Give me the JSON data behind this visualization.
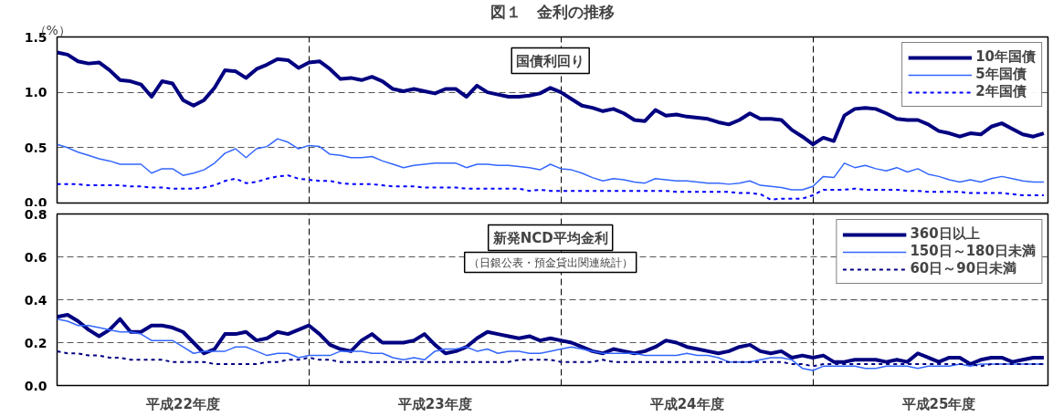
{
  "chart_data": [
    {
      "type": "line",
      "title": "図１　金利の推移",
      "subtitle": "国債利回り",
      "ylabel": "（%）",
      "categories": [
        null,
        null,
        null,
        null,
        null,
        null,
        null,
        null,
        null,
        null,
        null,
        null,
        null,
        null,
        null,
        null,
        null,
        null,
        null,
        null,
        null,
        null,
        null,
        null,
        null,
        null,
        null,
        null,
        null,
        null,
        null,
        null,
        null,
        null,
        null,
        null,
        null,
        null,
        null,
        null,
        null,
        null,
        null,
        null,
        null,
        null,
        null,
        null,
        null,
        null,
        null,
        null,
        null,
        null,
        null,
        null,
        null,
        null,
        null,
        null,
        null,
        null,
        null,
        null,
        null,
        null,
        null,
        null,
        null,
        null,
        null,
        null,
        null,
        null,
        null,
        null,
        null,
        null,
        null,
        null,
        null,
        null,
        null,
        null,
        null,
        null,
        null,
        null,
        null,
        null,
        null,
        null,
        null,
        null,
        null
      ],
      "ylim": [
        0,
        1.5
      ],
      "yticks": [
        {
          "value": 0,
          "label": "0.0"
        },
        {
          "value": 0.5,
          "label": "0.5"
        },
        {
          "value": 1,
          "label": "1.0"
        },
        {
          "value": 1.5,
          "label": "1.5"
        }
      ],
      "tick_labels": "y",
      "grid": true,
      "legend": "top right",
      "series": [
        {
          "name": "10年国債",
          "color": "#000080",
          "line_style": "solid",
          "values": [
            1.36,
            1.34,
            1.28,
            1.26,
            1.27,
            1.2,
            1.11,
            1.1,
            1.07,
            0.96,
            1.1,
            1.08,
            0.93,
            0.88,
            0.93,
            1.04,
            1.2,
            1.19,
            1.13,
            1.21,
            1.25,
            1.3,
            1.29,
            1.22,
            1.27,
            1.28,
            1.21,
            1.12,
            1.13,
            1.11,
            1.14,
            1.1,
            1.03,
            1.01,
            1.03,
            1.01,
            0.99,
            1.03,
            1.03,
            0.96,
            1.06,
            1.0,
            0.98,
            0.96,
            0.96,
            0.97,
            0.99,
            1.04,
            1.0,
            0.94,
            0.88,
            0.86,
            0.83,
            0.85,
            0.81,
            0.75,
            0.74,
            0.84,
            0.79,
            0.8,
            0.78,
            0.77,
            0.76,
            0.73,
            0.71,
            0.75,
            0.81,
            0.76,
            0.76,
            0.75,
            0.66,
            0.6,
            0.53,
            0.59,
            0.56,
            0.79,
            0.85,
            0.86,
            0.85,
            0.81,
            0.76,
            0.75,
            0.75,
            0.71,
            0.65,
            0.63,
            0.6,
            0.63,
            0.62,
            0.69,
            0.72,
            0.67,
            0.62,
            0.6,
            0.63
          ]
        },
        {
          "name": "5年国債",
          "color": "#3366ff",
          "line_style": "solid",
          "values": [
            0.53,
            0.5,
            0.46,
            0.43,
            0.4,
            0.38,
            0.35,
            0.35,
            0.35,
            0.27,
            0.31,
            0.31,
            0.25,
            0.27,
            0.3,
            0.36,
            0.45,
            0.49,
            0.41,
            0.49,
            0.51,
            0.58,
            0.55,
            0.49,
            0.52,
            0.51,
            0.44,
            0.43,
            0.41,
            0.41,
            0.42,
            0.38,
            0.35,
            0.32,
            0.34,
            0.35,
            0.36,
            0.36,
            0.36,
            0.32,
            0.35,
            0.35,
            0.34,
            0.34,
            0.33,
            0.32,
            0.3,
            0.35,
            0.31,
            0.3,
            0.27,
            0.23,
            0.2,
            0.22,
            0.21,
            0.19,
            0.18,
            0.22,
            0.21,
            0.2,
            0.2,
            0.19,
            0.18,
            0.18,
            0.17,
            0.18,
            0.2,
            0.16,
            0.15,
            0.14,
            0.12,
            0.12,
            0.15,
            0.24,
            0.23,
            0.36,
            0.32,
            0.34,
            0.31,
            0.29,
            0.32,
            0.28,
            0.31,
            0.26,
            0.24,
            0.21,
            0.19,
            0.21,
            0.19,
            0.22,
            0.24,
            0.22,
            0.2,
            0.19,
            0.19
          ]
        },
        {
          "name": "2年国債",
          "color": "#0000ff",
          "line_style": "dotted",
          "values": [
            0.17,
            0.17,
            0.17,
            0.16,
            0.16,
            0.16,
            0.16,
            0.15,
            0.15,
            0.14,
            0.14,
            0.13,
            0.13,
            0.13,
            0.14,
            0.16,
            0.2,
            0.22,
            0.18,
            0.19,
            0.22,
            0.24,
            0.25,
            0.22,
            0.21,
            0.2,
            0.2,
            0.18,
            0.17,
            0.17,
            0.17,
            0.16,
            0.15,
            0.15,
            0.15,
            0.14,
            0.14,
            0.14,
            0.14,
            0.13,
            0.13,
            0.13,
            0.13,
            0.13,
            0.13,
            0.11,
            0.12,
            0.11,
            0.11,
            0.11,
            0.11,
            0.11,
            0.11,
            0.11,
            0.11,
            0.11,
            0.11,
            0.11,
            0.11,
            0.1,
            0.1,
            0.1,
            0.1,
            0.1,
            0.1,
            0.09,
            0.09,
            0.08,
            0.03,
            0.04,
            0.04,
            0.04,
            0.07,
            0.12,
            0.12,
            0.12,
            0.13,
            0.12,
            0.12,
            0.12,
            0.12,
            0.11,
            0.11,
            0.1,
            0.1,
            0.1,
            0.1,
            0.09,
            0.09,
            0.09,
            0.09,
            0.08,
            0.07,
            0.07,
            0.07
          ]
        }
      ]
    },
    {
      "type": "line",
      "subtitle": "新発NCD平均金利",
      "annotations": [
        "（日銀公表・預金貸出関連統計）"
      ],
      "categories": [
        null,
        null,
        null,
        null,
        null,
        null,
        null,
        null,
        null,
        null,
        null,
        null,
        "平成22年度",
        null,
        null,
        null,
        null,
        null,
        null,
        null,
        null,
        null,
        null,
        null,
        null,
        null,
        null,
        null,
        null,
        null,
        null,
        null,
        null,
        null,
        null,
        null,
        "平成23年度",
        null,
        null,
        null,
        null,
        null,
        null,
        null,
        null,
        null,
        null,
        null,
        null,
        null,
        null,
        null,
        null,
        null,
        null,
        null,
        null,
        null,
        null,
        null,
        "平成24年度",
        null,
        null,
        null,
        null,
        null,
        null,
        null,
        null,
        null,
        null,
        null,
        null,
        null,
        null,
        null,
        null,
        null,
        null,
        null,
        null,
        null,
        null,
        null,
        "平成25年度",
        null,
        null,
        null,
        null,
        null,
        null,
        null,
        null,
        null,
        null
      ],
      "ylim": [
        0,
        0.8
      ],
      "yticks": [
        {
          "value": 0,
          "label": "0.0"
        },
        {
          "value": 0.2,
          "label": "0.2"
        },
        {
          "value": 0.4,
          "label": "0.4"
        },
        {
          "value": 0.6,
          "label": "0.6"
        },
        {
          "value": 0.8,
          "label": "0.8"
        }
      ],
      "grid": true,
      "legend": "top right",
      "series": [
        {
          "name": "360日以上",
          "color": "#000080",
          "line_style": "solid",
          "values": [
            0.32,
            0.33,
            0.3,
            0.26,
            0.23,
            0.26,
            0.31,
            0.25,
            0.25,
            0.28,
            0.28,
            0.27,
            0.25,
            0.2,
            0.15,
            0.17,
            0.24,
            0.24,
            0.25,
            0.21,
            0.22,
            0.25,
            0.24,
            0.26,
            0.28,
            0.24,
            0.19,
            0.17,
            0.16,
            0.21,
            0.24,
            0.2,
            0.2,
            0.2,
            0.21,
            0.24,
            0.19,
            0.15,
            0.16,
            0.18,
            0.22,
            0.25,
            0.24,
            0.23,
            0.22,
            0.23,
            0.21,
            0.22,
            0.21,
            0.2,
            0.18,
            0.16,
            0.15,
            0.17,
            0.16,
            0.15,
            0.16,
            0.18,
            0.21,
            0.2,
            0.18,
            0.17,
            0.16,
            0.15,
            0.16,
            0.18,
            0.19,
            0.16,
            0.15,
            0.16,
            0.13,
            0.14,
            0.13,
            0.14,
            0.11,
            0.11,
            0.12,
            0.12,
            0.12,
            0.11,
            0.12,
            0.11,
            0.15,
            0.13,
            0.11,
            0.13,
            0.13,
            0.1,
            0.12,
            0.13,
            0.13,
            0.11,
            0.12,
            0.13,
            0.13
          ]
        },
        {
          "name": "150日～180日未満",
          "color": "#3366ff",
          "line_style": "solid",
          "values": [
            0.31,
            0.3,
            0.28,
            0.28,
            0.27,
            0.26,
            0.25,
            0.25,
            0.24,
            0.21,
            0.21,
            0.21,
            0.18,
            0.15,
            0.16,
            0.16,
            0.16,
            0.18,
            0.18,
            0.16,
            0.14,
            0.15,
            0.15,
            0.13,
            0.14,
            0.14,
            0.14,
            0.16,
            0.16,
            0.16,
            0.15,
            0.15,
            0.13,
            0.12,
            0.13,
            0.12,
            0.16,
            0.17,
            0.17,
            0.18,
            0.16,
            0.17,
            0.15,
            0.16,
            0.16,
            0.15,
            0.15,
            0.16,
            0.17,
            0.18,
            0.17,
            0.16,
            0.15,
            0.15,
            0.15,
            0.15,
            0.14,
            0.14,
            0.14,
            0.14,
            0.15,
            0.14,
            0.14,
            0.13,
            0.11,
            0.11,
            0.11,
            0.12,
            0.13,
            0.13,
            0.12,
            0.08,
            0.07,
            0.09,
            0.09,
            0.09,
            0.09,
            0.08,
            0.08,
            0.09,
            0.09,
            0.09,
            0.08,
            0.09,
            0.09,
            0.09,
            0.1,
            0.09,
            0.1,
            0.1,
            0.1,
            0.1,
            0.1,
            0.1,
            0.1
          ]
        },
        {
          "name": "60日～90日未満",
          "color": "#000080",
          "line_style": "dotted",
          "values": [
            0.16,
            0.15,
            0.15,
            0.14,
            0.14,
            0.13,
            0.13,
            0.12,
            0.12,
            0.12,
            0.12,
            0.11,
            0.11,
            0.11,
            0.11,
            0.1,
            0.1,
            0.1,
            0.1,
            0.1,
            0.11,
            0.11,
            0.12,
            0.12,
            0.13,
            0.12,
            0.12,
            0.11,
            0.11,
            0.11,
            0.11,
            0.11,
            0.11,
            0.11,
            0.11,
            0.11,
            0.11,
            0.11,
            0.11,
            0.11,
            0.11,
            0.11,
            0.11,
            0.11,
            0.12,
            0.12,
            0.12,
            0.12,
            0.11,
            0.11,
            0.11,
            0.11,
            0.12,
            0.11,
            0.11,
            0.11,
            0.11,
            0.11,
            0.11,
            0.11,
            0.11,
            0.11,
            0.11,
            0.11,
            0.11,
            0.11,
            0.11,
            0.11,
            0.11,
            0.11,
            0.1,
            0.1,
            0.09,
            0.1,
            0.1,
            0.1,
            0.1,
            0.1,
            0.1,
            0.1,
            0.1,
            0.1,
            0.1,
            0.1,
            0.1,
            0.1,
            0.1,
            0.1,
            0.09,
            0.1,
            0.1,
            0.1,
            0.1,
            0.1,
            0.1
          ]
        }
      ]
    }
  ]
}
